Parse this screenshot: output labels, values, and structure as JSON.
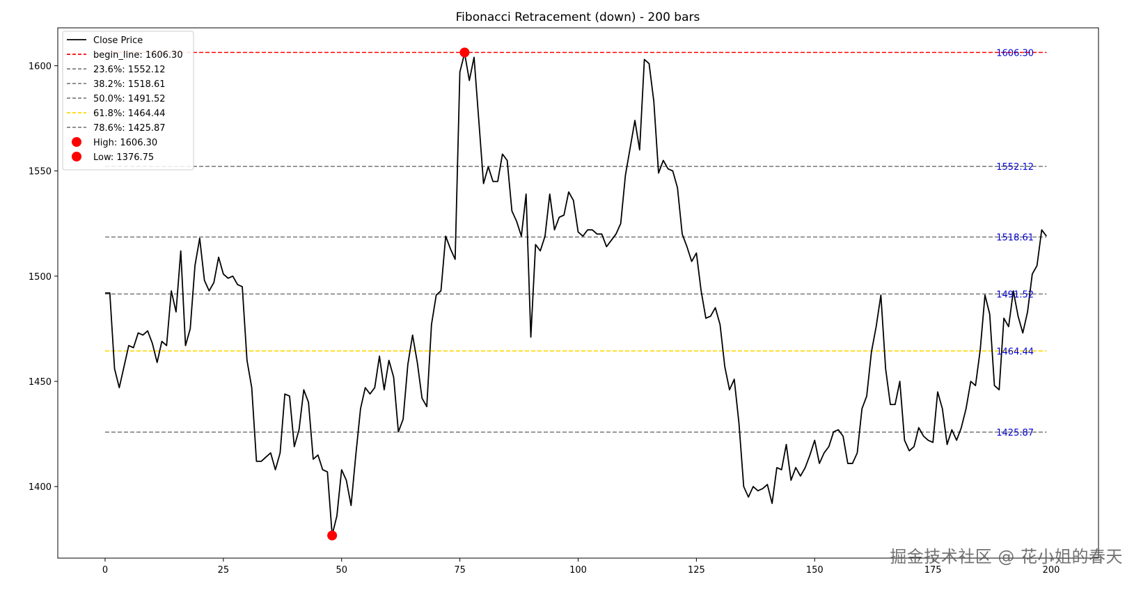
{
  "chart_data": {
    "type": "line",
    "title": "Fibonacci Retracement (down) - 200 bars",
    "xlabel": "",
    "ylabel": "",
    "xlim": [
      -10,
      210
    ],
    "ylim": [
      1366,
      1618
    ],
    "grid": false,
    "legend_position": "top-left",
    "x_ticks": [
      0,
      25,
      50,
      75,
      100,
      125,
      150,
      175,
      200
    ],
    "x_tick_labels": [
      "0",
      "25",
      "50",
      "75",
      "100",
      "125",
      "150",
      "175",
      "200"
    ],
    "y_ticks": [
      1400,
      1450,
      1500,
      1550,
      1600
    ],
    "y_tick_labels": [
      "1400",
      "1450",
      "1500",
      "1550",
      "1600"
    ],
    "series": [
      {
        "name": "Close Price",
        "color": "#000000",
        "x_start": 0,
        "values": [
          1492,
          1492,
          1456,
          1447,
          1457,
          1467,
          1466,
          1473,
          1472,
          1474,
          1468,
          1459,
          1469,
          1467,
          1493,
          1483,
          1512,
          1467,
          1475,
          1505,
          1518,
          1498,
          1493,
          1497,
          1509,
          1501,
          1499,
          1500,
          1496,
          1495,
          1460,
          1447,
          1412,
          1412,
          1414,
          1416,
          1408,
          1416,
          1444,
          1443,
          1419,
          1427,
          1446,
          1440,
          1413,
          1415,
          1408,
          1407,
          1377,
          1386,
          1408,
          1403,
          1391,
          1415,
          1437,
          1447,
          1444,
          1447,
          1462,
          1446,
          1460,
          1452,
          1426,
          1432,
          1458,
          1472,
          1459,
          1442,
          1438,
          1477,
          1491,
          1493,
          1519,
          1513,
          1508,
          1597,
          1606,
          1593,
          1604,
          1574,
          1544,
          1552,
          1545,
          1545,
          1558,
          1555,
          1531,
          1526,
          1519,
          1539,
          1471,
          1515,
          1512,
          1519,
          1539,
          1522,
          1528,
          1529,
          1540,
          1536,
          1521,
          1519,
          1522,
          1522,
          1520,
          1520,
          1514,
          1517,
          1520,
          1525,
          1548,
          1561,
          1574,
          1560,
          1603,
          1601,
          1583,
          1549,
          1555,
          1551,
          1550,
          1542,
          1520,
          1514,
          1507,
          1511,
          1493,
          1480,
          1481,
          1485,
          1477,
          1457,
          1446,
          1451,
          1430,
          1400,
          1395,
          1400,
          1398,
          1399,
          1401,
          1392,
          1409,
          1408,
          1420,
          1403,
          1409,
          1405,
          1409,
          1415,
          1422,
          1411,
          1416,
          1419,
          1426,
          1427,
          1424,
          1411,
          1411,
          1416,
          1437,
          1443,
          1464,
          1476,
          1491,
          1456,
          1439,
          1439,
          1450,
          1422,
          1417,
          1419,
          1428,
          1424,
          1422,
          1421,
          1445,
          1437,
          1420,
          1427,
          1422,
          1428,
          1437,
          1450,
          1448,
          1465,
          1491,
          1482,
          1448,
          1446,
          1480,
          1476,
          1493,
          1481,
          1473,
          1483,
          1501,
          1505,
          1522,
          1519
        ]
      }
    ],
    "levels": [
      {
        "legend": "begin_line: 1606.30",
        "value": 1606.3,
        "label": "1606.30",
        "color": "#ff0000",
        "dash": "dashed"
      },
      {
        "legend": "23.6%: 1552.12",
        "value": 1552.12,
        "label": "1552.12",
        "color": "#808080",
        "dash": "dashed"
      },
      {
        "legend": "38.2%: 1518.61",
        "value": 1518.61,
        "label": "1518.61",
        "color": "#808080",
        "dash": "dashed"
      },
      {
        "legend": "50.0%: 1491.52",
        "value": 1491.52,
        "label": "1491.52",
        "color": "#808080",
        "dash": "dashed"
      },
      {
        "legend": "61.8%: 1464.44",
        "value": 1464.44,
        "label": "1464.44",
        "color": "#ffd700",
        "dash": "dashed"
      },
      {
        "legend": "78.6%: 1425.87",
        "value": 1425.87,
        "label": "1425.87",
        "color": "#808080",
        "dash": "dashed"
      }
    ],
    "level_label_color": "#0000cd",
    "points": [
      {
        "legend": "High: 1606.30",
        "x": 76,
        "y": 1606.3,
        "color": "#ff0000"
      },
      {
        "legend": "Low: 1376.75",
        "x": 48,
        "y": 1376.75,
        "color": "#ff0000"
      }
    ]
  },
  "watermark": "掘金技术社区 @ 花小姐的春天"
}
